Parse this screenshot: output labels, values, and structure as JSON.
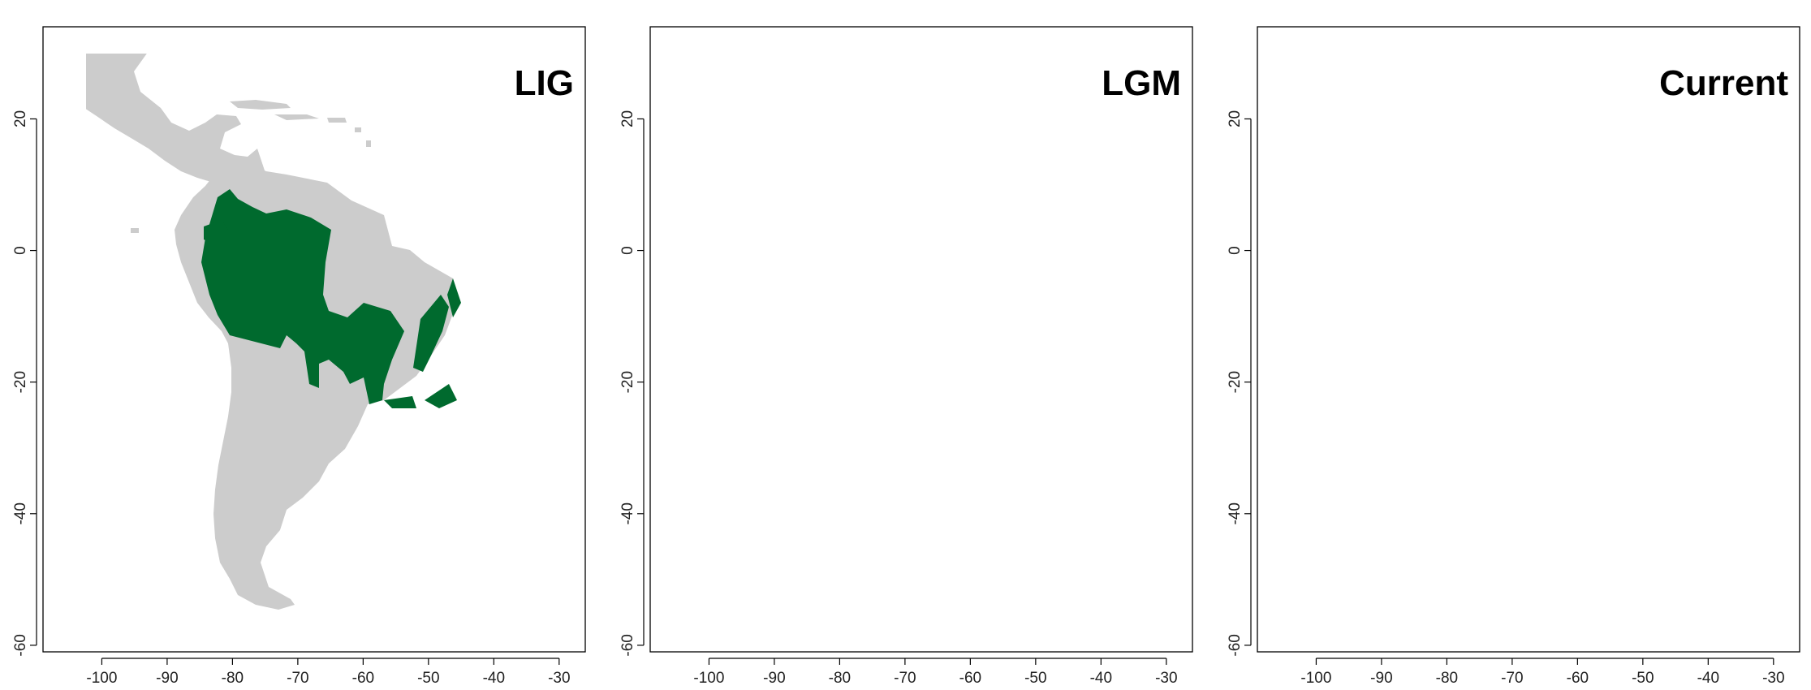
{
  "colors": {
    "land": "#cccccc",
    "range": "#006a2e",
    "frame": "#000000",
    "background": "#ffffff"
  },
  "panels": [
    {
      "title": "LIG"
    },
    {
      "title": "LGM"
    },
    {
      "title": "Current"
    }
  ],
  "axes": {
    "x_ticks": [
      "-100",
      "-90",
      "-80",
      "-70",
      "-60",
      "-50",
      "-40",
      "-30"
    ],
    "y_ticks": [
      "20",
      "0",
      "-20",
      "-40",
      "-60"
    ],
    "x_range": [
      -109,
      -26
    ],
    "y_range": [
      -61,
      34
    ]
  },
  "chart_data": [
    {
      "type": "map",
      "title": "LIG",
      "xlim": [
        -109,
        -26
      ],
      "ylim": [
        -61,
        34
      ],
      "x_ticks": [
        -100,
        -90,
        -80,
        -70,
        -60,
        -50,
        -40,
        -30
      ],
      "y_ticks": [
        20,
        0,
        -20,
        -40,
        -60
      ],
      "grid": false
    },
    {
      "type": "map",
      "title": "LGM",
      "xlim": [
        -109,
        -26
      ],
      "ylim": [
        -61,
        34
      ],
      "x_ticks": [
        -100,
        -90,
        -80,
        -70,
        -60,
        -50,
        -40,
        -30
      ],
      "y_ticks": [
        20,
        0,
        -20,
        -40,
        -60
      ],
      "grid": false
    },
    {
      "type": "map",
      "title": "Current",
      "xlim": [
        -109,
        -26
      ],
      "ylim": [
        -61,
        34
      ],
      "x_ticks": [
        -100,
        -90,
        -80,
        -70,
        -60,
        -50,
        -40,
        -30
      ],
      "y_ticks": [
        20,
        0,
        -20,
        -40,
        -60
      ],
      "grid": false
    }
  ]
}
